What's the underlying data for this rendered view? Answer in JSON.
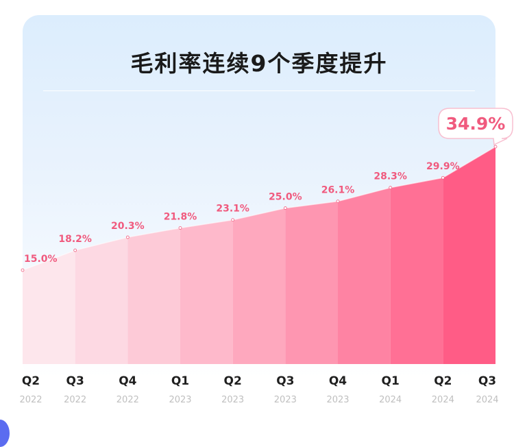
{
  "chart_data": {
    "type": "area",
    "title": "毛利率连续9个季度提升",
    "categories": [
      "Q2 2022",
      "Q3 2022",
      "Q4 2022",
      "Q1 2023",
      "Q2 2023",
      "Q3 2023",
      "Q4 2023",
      "Q1 2024",
      "Q2 2024",
      "Q3 2024"
    ],
    "x_quarters": [
      "Q2",
      "Q3",
      "Q4",
      "Q1",
      "Q2",
      "Q3",
      "Q4",
      "Q1",
      "Q2",
      "Q3"
    ],
    "x_years": [
      "2022",
      "2022",
      "2022",
      "2023",
      "2023",
      "2023",
      "2023",
      "2024",
      "2024",
      "2024"
    ],
    "values": [
      15.0,
      18.2,
      20.3,
      21.8,
      23.1,
      25.0,
      26.1,
      28.3,
      29.9,
      34.9
    ],
    "value_labels": [
      "15.0%",
      "18.2%",
      "20.3%",
      "21.8%",
      "23.1%",
      "25.0%",
      "26.1%",
      "28.3%",
      "29.9%",
      "34.9%"
    ],
    "unit": "%",
    "highlight_index": 9,
    "colors": {
      "label": "#f05a7e",
      "gradient_start": "#fde6ec",
      "gradient_end": "#ff5c86",
      "highlight_bubble_border": "#f8bfd0"
    },
    "grid": false,
    "legend": "none"
  }
}
